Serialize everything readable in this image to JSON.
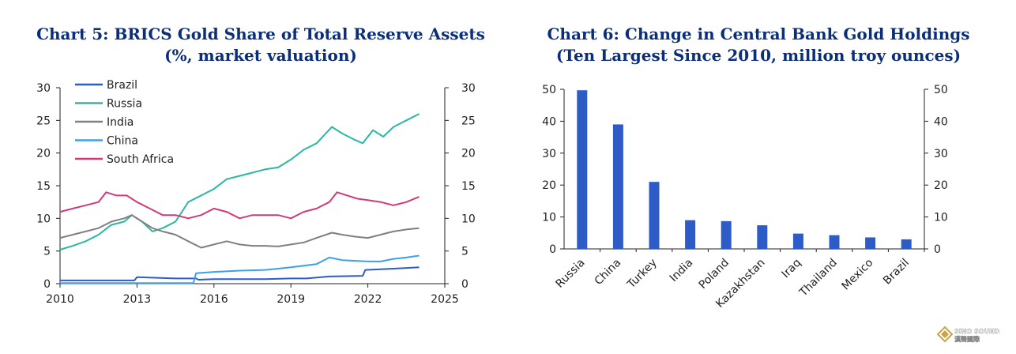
{
  "chart_data": [
    {
      "type": "line",
      "title": "Chart 5: BRICS Gold Share of Total Reserve Assets",
      "subtitle": "(%, market valuation)",
      "xlabel": "",
      "ylabel": "",
      "xlim": [
        2010,
        2025
      ],
      "ylim": [
        0,
        30
      ],
      "x_ticks": [
        "2010",
        "2013",
        "2016",
        "2019",
        "2022",
        "2025"
      ],
      "y_ticks": [
        "0",
        "5",
        "10",
        "15",
        "20",
        "25",
        "30"
      ],
      "legend_position": "top-left",
      "series": [
        {
          "name": "Brazil",
          "color": "#2e5cc7",
          "x": [
            2010,
            2012.9,
            2013.0,
            2014.5,
            2015.3,
            2015.4,
            2016.0,
            2017.0,
            2018.0,
            2019.0,
            2019.6,
            2020.5,
            2021.8,
            2021.9,
            2022.5,
            2023.0,
            2024.0
          ],
          "y": [
            0.5,
            0.5,
            1.0,
            0.8,
            0.8,
            0.6,
            0.7,
            0.7,
            0.7,
            0.8,
            0.8,
            1.1,
            1.2,
            2.1,
            2.2,
            2.3,
            2.5
          ]
        },
        {
          "name": "Russia",
          "color": "#2ab8a3",
          "x": [
            2010,
            2010.5,
            2011.0,
            2011.5,
            2012.0,
            2012.5,
            2012.8,
            2013.2,
            2013.6,
            2014.0,
            2014.5,
            2015.0,
            2015.5,
            2016.0,
            2016.5,
            2017.0,
            2017.5,
            2018.0,
            2018.5,
            2019.0,
            2019.5,
            2020.0,
            2020.6,
            2021.0,
            2021.5,
            2021.8,
            2022.2,
            2022.6,
            2023.0,
            2023.5,
            2024.0
          ],
          "y": [
            5.2,
            5.8,
            6.5,
            7.5,
            9.0,
            9.5,
            10.5,
            9.5,
            8.0,
            8.5,
            9.5,
            12.5,
            13.5,
            14.5,
            16.0,
            16.5,
            17.0,
            17.5,
            17.8,
            19.0,
            20.5,
            21.5,
            24.0,
            23.0,
            22.0,
            21.5,
            23.5,
            22.5,
            24.0,
            25.0,
            26.0
          ]
        },
        {
          "name": "India",
          "color": "#808080",
          "x": [
            2010,
            2010.5,
            2011.0,
            2011.5,
            2012.0,
            2012.5,
            2012.8,
            2013.2,
            2013.6,
            2014.0,
            2014.5,
            2015.0,
            2015.5,
            2016.0,
            2016.5,
            2017.0,
            2017.5,
            2018.0,
            2018.5,
            2019.0,
            2019.5,
            2020.0,
            2020.6,
            2021.0,
            2021.5,
            2022.0,
            2022.5,
            2023.0,
            2023.5,
            2024.0
          ],
          "y": [
            7.0,
            7.5,
            8.0,
            8.5,
            9.5,
            10.0,
            10.5,
            9.5,
            8.5,
            8.0,
            7.5,
            6.5,
            5.5,
            6.0,
            6.5,
            6.0,
            5.8,
            5.8,
            5.7,
            6.0,
            6.3,
            7.0,
            7.8,
            7.5,
            7.2,
            7.0,
            7.5,
            8.0,
            8.3,
            8.5
          ]
        },
        {
          "name": "China",
          "color": "#3da0e8",
          "x": [
            2010,
            2015.2,
            2015.3,
            2016.0,
            2017.0,
            2018.0,
            2018.5,
            2019.0,
            2020.0,
            2020.5,
            2021.0,
            2022.0,
            2022.5,
            2023.0,
            2023.5,
            2024.0
          ],
          "y": [
            0.1,
            0.1,
            1.6,
            1.8,
            2.0,
            2.1,
            2.3,
            2.5,
            3.0,
            4.0,
            3.6,
            3.4,
            3.4,
            3.8,
            4.0,
            4.3
          ]
        },
        {
          "name": "South Africa",
          "color": "#d13a7a",
          "x": [
            2010,
            2010.5,
            2011.0,
            2011.5,
            2011.8,
            2012.2,
            2012.6,
            2013.0,
            2013.5,
            2014.0,
            2014.5,
            2015.0,
            2015.5,
            2016.0,
            2016.5,
            2017.0,
            2017.5,
            2018.0,
            2018.5,
            2019.0,
            2019.5,
            2020.0,
            2020.5,
            2020.8,
            2021.2,
            2021.6,
            2022.0,
            2022.5,
            2023.0,
            2023.5,
            2024.0
          ],
          "y": [
            11.0,
            11.5,
            12.0,
            12.5,
            14.0,
            13.5,
            13.5,
            12.5,
            11.5,
            10.5,
            10.5,
            10.0,
            10.5,
            11.5,
            11.0,
            10.0,
            10.5,
            10.5,
            10.5,
            10.0,
            11.0,
            11.5,
            12.5,
            14.0,
            13.5,
            13.0,
            12.8,
            12.5,
            12.0,
            12.5,
            13.3
          ]
        }
      ]
    },
    {
      "type": "bar",
      "title": "Chart 6: Change in Central Bank Gold Holdings",
      "subtitle": "(Ten Largest Since 2010, million troy ounces)",
      "xlabel": "",
      "ylabel": "",
      "ylim": [
        0,
        50
      ],
      "y_ticks": [
        "0",
        "10",
        "20",
        "30",
        "40",
        "50"
      ],
      "bar_color": "#2e5cc7",
      "categories": [
        "Russia",
        "China",
        "Turkey",
        "India",
        "Poland",
        "Kazakhstan",
        "Iraq",
        "Thailand",
        "Mexico",
        "Brazil"
      ],
      "values": [
        49.7,
        39,
        21,
        9,
        8.7,
        7.4,
        4.8,
        4.3,
        3.6,
        3
      ]
    }
  ],
  "watermark": {
    "name": "SINO SOUND",
    "subtitle": "漢聲國際"
  }
}
